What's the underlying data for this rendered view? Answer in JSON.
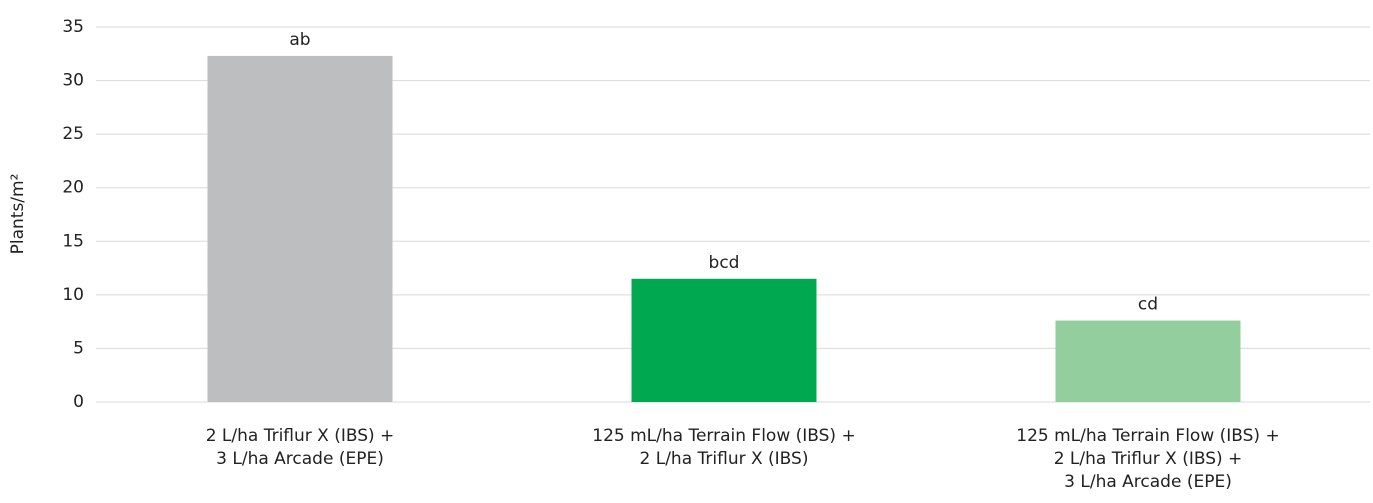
{
  "chart_data": {
    "type": "bar",
    "y_axis_label": "Plants/m²",
    "categories": [
      [
        "2 L/ha Triflur X (IBS) +",
        "3 L/ha Arcade (EPE)"
      ],
      [
        "125 mL/ha Terrain Flow (IBS) +",
        "2 L/ha Triflur X (IBS)"
      ],
      [
        "125 mL/ha Terrain Flow (IBS) +",
        "2 L/ha Triflur X (IBS) +",
        "3 L/ha Arcade (EPE)"
      ]
    ],
    "values": [
      32.3,
      11.5,
      7.6
    ],
    "bar_labels": [
      "ab",
      "bcd",
      "cd"
    ],
    "colors": [
      "#bdbebf",
      "#00a94f",
      "#93cf9e"
    ],
    "ylim": [
      0,
      35
    ],
    "yticks": [
      0,
      5,
      10,
      15,
      20,
      25,
      30,
      35
    ],
    "grid": true
  }
}
